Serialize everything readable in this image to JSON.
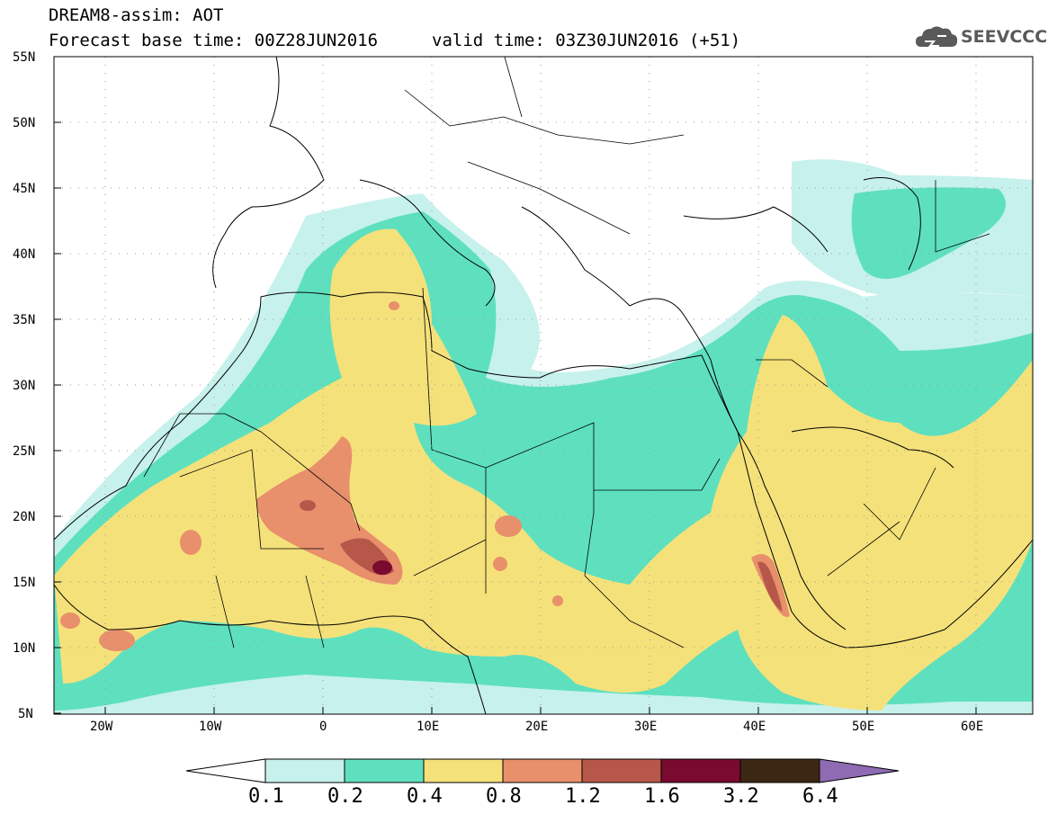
{
  "header": {
    "line1": "DREAM8-assim: AOT",
    "line2": "Forecast base time: 00Z28JUN2016",
    "line3": "valid time: 03Z30JUN2016 (+51)",
    "logo_text": "SEEVCCC",
    "logo_icon": "cloud-icon"
  },
  "map": {
    "lon_range": [
      -25,
      65
    ],
    "lat_range": [
      5,
      55
    ],
    "lat_ticks": [
      "5N",
      "10N",
      "15N",
      "20N",
      "25N",
      "30N",
      "35N",
      "40N",
      "45N",
      "50N",
      "55N"
    ],
    "lon_ticks": [
      "20W",
      "10W",
      "0",
      "10E",
      "20E",
      "30E",
      "40E",
      "50E",
      "60E"
    ],
    "background": "#ffffff"
  },
  "colorbar": {
    "levels": [
      "0.1",
      "0.2",
      "0.4",
      "0.8",
      "1.2",
      "1.6",
      "3.2",
      "6.4"
    ],
    "colors": [
      "#ffffff",
      "#c7f1ec",
      "#5ee0be",
      "#f5e17a",
      "#e88f6c",
      "#b7574a",
      "#7a0a2f",
      "#3b2714",
      "#8e6bb3"
    ]
  }
}
